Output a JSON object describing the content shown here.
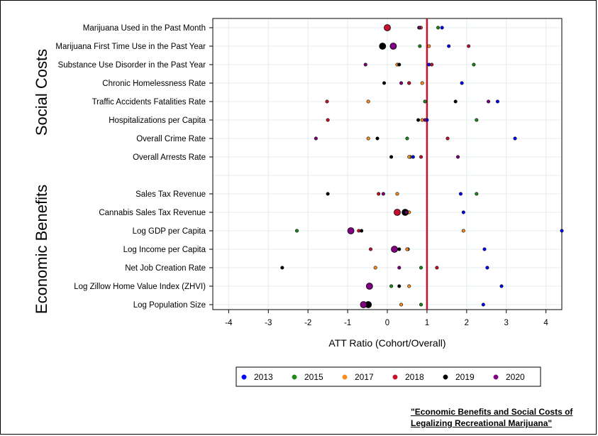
{
  "caption": "\"Economic Benefits and Social Costs of Legalizing Recreational Marijuana\"",
  "chart_data": {
    "type": "scatter",
    "title": "",
    "xlabel": "ATT Ratio (Cohort/Overall)",
    "ylabel": "",
    "xlim": [
      -4.4,
      4.4
    ],
    "xticks": [
      -4,
      -3,
      -2,
      -1,
      0,
      1,
      2,
      3,
      4
    ],
    "reference_line": 1,
    "reference_color": "#c8102e",
    "grid": true,
    "legend_position": "bottom",
    "groups": [
      {
        "name": "Social Costs",
        "categories": [
          "Marijuana Used in the Past Month",
          "Marijuana First Time Use in the Past Year",
          "Substance Use Disorder in the Past Year",
          "Chronic Homelessness Rate",
          "Traffic Accidents Fatalities Rate",
          "Hospitalizations per Capita",
          "Overall Crime Rate",
          "Overall Arrests Rate"
        ]
      },
      {
        "name": "Economic Benefits",
        "categories": [
          "Sales Tax Revenue",
          "Cannabis Sales Tax Revenue",
          "Log GDP per Capita",
          "Log Income per Capita",
          "Net Job Creation Rate",
          "Log Zillow Home Value Index (ZHVI)",
          "Log Population Size"
        ]
      }
    ],
    "categories": [
      "Marijuana Used in the Past Month",
      "Marijuana First Time Use in the Past Year",
      "Substance Use Disorder in the Past Year",
      "Chronic Homelessness Rate",
      "Traffic Accidents Fatalities Rate",
      "Hospitalizations per Capita",
      "Overall Crime Rate",
      "Overall Arrests Rate",
      "Sales Tax Revenue",
      "Cannabis Sales Tax Revenue",
      "Log GDP per Capita",
      "Log Income per Capita",
      "Net Job Creation Rate",
      "Log Zillow Home Value Index (ZHVI)",
      "Log Population Size"
    ],
    "series": [
      {
        "name": "2013",
        "color": "#0000ff",
        "values": [
          1.38,
          1.55,
          1.05,
          1.88,
          2.78,
          1.0,
          3.22,
          0.65,
          1.85,
          1.92,
          4.4,
          2.45,
          2.52,
          2.88,
          2.42
        ],
        "large": [
          false,
          false,
          false,
          false,
          false,
          false,
          false,
          false,
          false,
          false,
          false,
          false,
          false,
          false,
          false
        ]
      },
      {
        "name": "2015",
        "color": "#1a8a1a",
        "values": [
          1.28,
          0.82,
          2.18,
          0.55,
          0.95,
          2.25,
          0.5,
          0.58,
          2.25,
          0.52,
          -2.28,
          0.52,
          0.85,
          0.1,
          0.85
        ],
        "large": [
          false,
          false,
          false,
          false,
          false,
          false,
          false,
          false,
          false,
          false,
          false,
          false,
          false,
          false,
          false
        ]
      },
      {
        "name": "2017",
        "color": "#ff8c1a",
        "values": [
          0.85,
          1.05,
          0.25,
          0.88,
          -0.48,
          0.88,
          -0.48,
          0.55,
          0.25,
          0.55,
          1.92,
          0.5,
          -0.3,
          0.55,
          0.35
        ],
        "large": [
          false,
          false,
          false,
          false,
          false,
          false,
          false,
          false,
          false,
          false,
          false,
          false,
          false,
          false,
          false
        ]
      },
      {
        "name": "2018",
        "color": "#c8102e",
        "values": [
          0.0,
          2.05,
          1.12,
          0.55,
          -1.52,
          -1.5,
          1.52,
          0.85,
          -0.22,
          0.25,
          -0.72,
          -0.42,
          1.25,
          -0.42,
          -0.5
        ],
        "large": [
          true,
          false,
          false,
          false,
          false,
          false,
          false,
          false,
          false,
          true,
          false,
          false,
          false,
          false,
          false
        ]
      },
      {
        "name": "2019",
        "color": "#000000",
        "values": [
          0.8,
          -0.12,
          0.3,
          -0.08,
          1.72,
          0.78,
          -0.25,
          0.1,
          -1.5,
          0.45,
          -0.65,
          0.3,
          -2.65,
          0.3,
          -0.48
        ],
        "large": [
          false,
          true,
          false,
          false,
          false,
          false,
          false,
          false,
          false,
          true,
          false,
          false,
          false,
          false,
          true
        ]
      },
      {
        "name": "2020",
        "color": "#800080",
        "values": [
          0.82,
          0.15,
          -0.55,
          0.35,
          2.55,
          0.95,
          -1.8,
          1.78,
          -0.1,
          0.48,
          -0.92,
          0.18,
          0.3,
          -0.45,
          -0.6
        ],
        "large": [
          false,
          true,
          false,
          false,
          false,
          false,
          false,
          false,
          false,
          false,
          true,
          true,
          false,
          true,
          true
        ]
      }
    ]
  }
}
